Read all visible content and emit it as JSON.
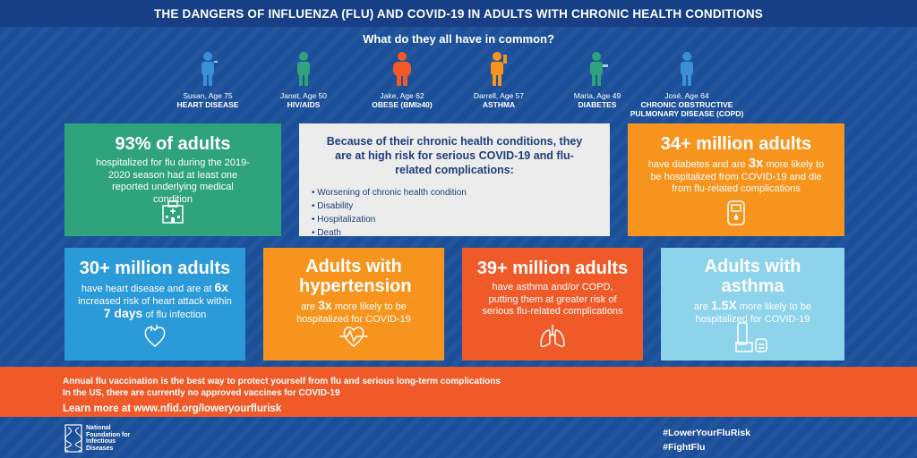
{
  "title": "THE DANGERS OF INFLUENZA (FLU) AND COVID-19 IN ADULTS WITH CHRONIC HEALTH CONDITIONS",
  "subtitle": "What do they all have in common?",
  "people": [
    {
      "name": "Susan, Age 75",
      "condition": "HEART DISEASE",
      "color": "#3b8fd6",
      "icon": "person-icon"
    },
    {
      "name": "Janet, Age 50",
      "condition": "HIV/AIDS",
      "color": "#2fa37c",
      "icon": "person-icon"
    },
    {
      "name": "Jake, Age 62",
      "condition": "OBESE (BMI≥40)",
      "color": "#f05a28",
      "icon": "person-icon"
    },
    {
      "name": "Darrell, Age 57",
      "condition": "ASTHMA",
      "color": "#f7941d",
      "icon": "person-icon"
    },
    {
      "name": "Maria, Age 49",
      "condition": "DIABETES",
      "color": "#2fa37c",
      "icon": "person-icon"
    },
    {
      "name": "José, Age 64",
      "condition": "CHRONIC OBSTRUCTIVE PULMONARY DISEASE (COPD)",
      "color": "#3b8fd6",
      "icon": "person-icon"
    }
  ],
  "cards": {
    "adults93": {
      "big": "93% of adults",
      "text": "hospitalized for flu during the 2019-2020 season had at least one reported underlying medical condition",
      "color": "#2fa37c",
      "icon": "hospital-icon"
    },
    "center": {
      "head": "Because of their chronic health conditions, they are at high risk for serious COVID-19 and flu-related complications:",
      "items": [
        "Worsening of chronic health condition",
        "Disability",
        "Hospitalization",
        "Death"
      ]
    },
    "diabetes": {
      "big": "34+ million adults",
      "text1": "have diabetes and are",
      "emph": "3x",
      "text2": "more likely to be hospitalized from COVID-19 and die from flu-related complications",
      "color": "#f7941d",
      "icon": "glucose-meter-icon"
    },
    "heart": {
      "big": "30+ million adults",
      "text1": "have heart disease and are at",
      "emph1": "6x",
      "text2": "increased risk of heart attack within",
      "emph2": "7 days",
      "text3": "of flu infection",
      "color": "#2b9ad9",
      "icon": "heart-icon"
    },
    "hypertension": {
      "big": "Adults with hypertension",
      "text1": "are",
      "emph": "3x",
      "text2": "more likely to be hospitalized for COVID-19",
      "color": "#f7941d",
      "icon": "heartbeat-icon"
    },
    "copd": {
      "big": "39+ million adults",
      "text": "have asthma and/or COPD, putting them at greater risk of serious flu-related complications",
      "color": "#f05a28",
      "icon": "lungs-icon"
    },
    "asthma": {
      "big": "Adults with asthma",
      "text1": "are",
      "emph": "1.5X",
      "text2": "more likely to be hospitalized for COVID-19",
      "color": "#8ed3ec",
      "icon": "inhaler-icon"
    }
  },
  "banner": {
    "line1": "Annual flu vaccination is the best way to protect yourself from flu and serious long-term complications",
    "line2": "In the US, there are currently no approved vaccines for COVID-19",
    "line3": "Learn more at www.nfid.org/loweryourflurisk"
  },
  "footer": {
    "logo_text": "National Foundation for Infectious Diseases",
    "hashtag1": "#LowerYourFluRisk",
    "hashtag2": "#FightFlu"
  }
}
